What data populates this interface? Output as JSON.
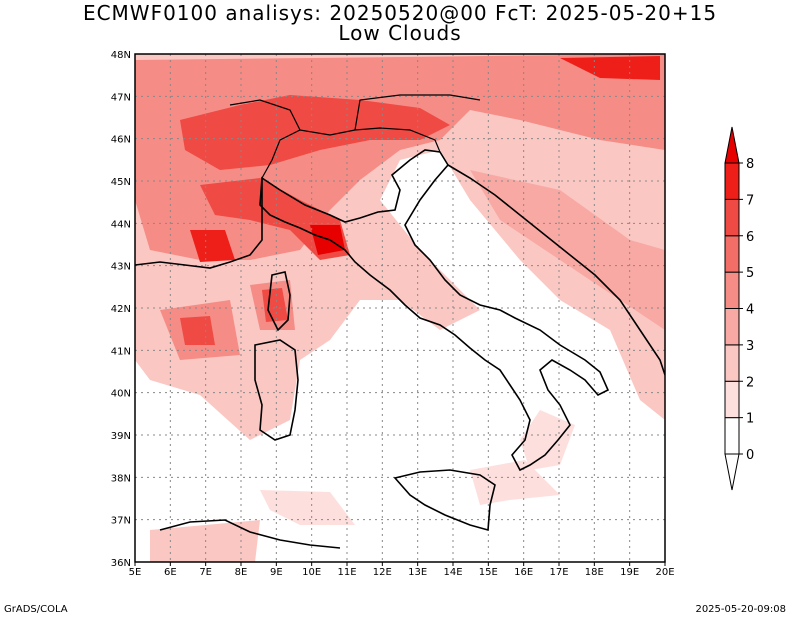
{
  "header": {
    "title_line1": "ECMWF0100 analisys: 20250520@00 FcT: 2025-05-20+15",
    "title_line2": "Low Clouds"
  },
  "map": {
    "lon_labels": [
      "5E",
      "6E",
      "7E",
      "8E",
      "9E",
      "10E",
      "11E",
      "12E",
      "13E",
      "14E",
      "15E",
      "16E",
      "17E",
      "18E",
      "19E",
      "20E"
    ],
    "lat_labels": [
      "48N",
      "47N",
      "46N",
      "45N",
      "44N",
      "43N",
      "42N",
      "41N",
      "40N",
      "39N",
      "38N",
      "37N",
      "36N"
    ],
    "lon_range": [
      5,
      20
    ],
    "lat_range": [
      36,
      48
    ],
    "grid": "dotted",
    "region": "Italy and surrounding seas",
    "variable": "low cloud cover"
  },
  "colorbar": {
    "levels": [
      "0",
      "1",
      "2",
      "3",
      "4",
      "5",
      "6",
      "7",
      "8"
    ],
    "colors": [
      "#ffffff",
      "#fde0de",
      "#fbc7c3",
      "#f9a9a4",
      "#f58c86",
      "#f26e67",
      "#ef4a43",
      "#ed1f18",
      "#e60000"
    ],
    "extend": "both"
  },
  "footer": {
    "left": "GrADS/COLA",
    "right": "2025-05-20-09:08"
  }
}
